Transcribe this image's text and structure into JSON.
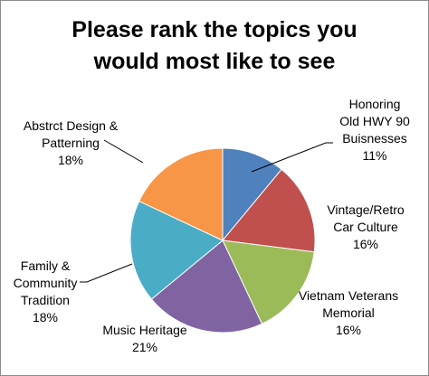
{
  "chart_data": {
    "type": "pie",
    "title_lines": [
      "Please rank the topics you",
      "would most like to see"
    ],
    "slices": [
      {
        "label_lines": [
          "Honoring",
          "Old HWY 90",
          "Buisnesses"
        ],
        "value": 11,
        "value_label": "11%",
        "color": "#4f81bd"
      },
      {
        "label_lines": [
          "Vintage/Retro",
          "Car Culture"
        ],
        "value": 16,
        "value_label": "16%",
        "color": "#c0504d"
      },
      {
        "label_lines": [
          "Vietnam Veterans",
          "Memorial"
        ],
        "value": 16,
        "value_label": "16%",
        "color": "#9bbb59"
      },
      {
        "label_lines": [
          "Music Heritage"
        ],
        "value": 21,
        "value_label": "21%",
        "color": "#8064a2"
      },
      {
        "label_lines": [
          "Family &",
          "Community",
          "Tradition"
        ],
        "value": 18,
        "value_label": "18%",
        "color": "#4bacc6"
      },
      {
        "label_lines": [
          "Abstrct Design &",
          "Patterning"
        ],
        "value": 18,
        "value_label": "18%",
        "color": "#f79646"
      }
    ],
    "start_position": "top",
    "direction": "clockwise",
    "legend": "none"
  }
}
